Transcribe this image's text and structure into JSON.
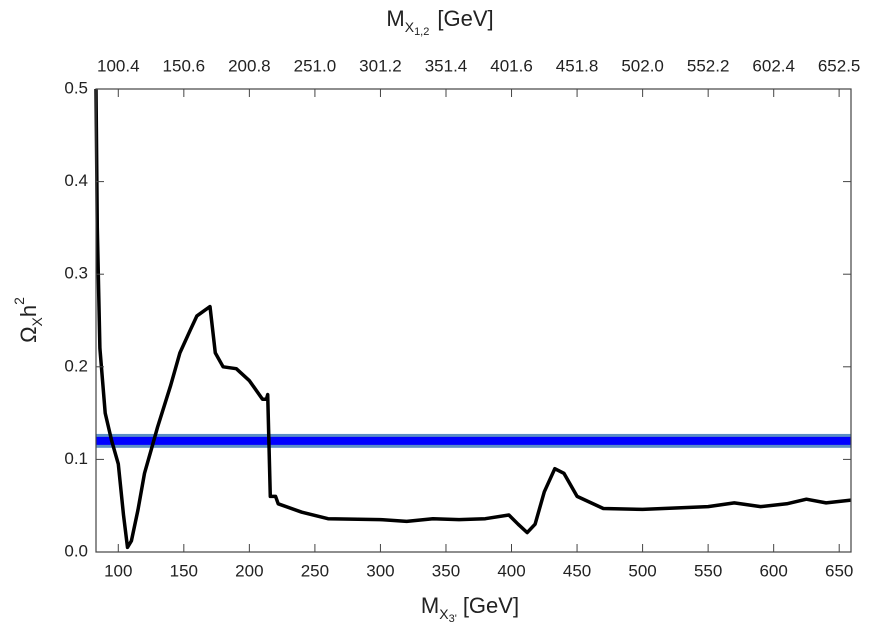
{
  "chart_data": {
    "type": "line",
    "x_label": {
      "main": "M",
      "sub": "X",
      "subsub": "3'",
      "unit": "[GeV]"
    },
    "x2_label": {
      "main": "M",
      "sub": "X",
      "subsub": "1,2",
      "unit": "[GeV]"
    },
    "y_label": {
      "main": "Ω",
      "sub": "X",
      "mid": "h",
      "sup": "2"
    },
    "xlim": [
      83,
      659
    ],
    "xticks": [
      100,
      150,
      200,
      250,
      300,
      350,
      400,
      450,
      500,
      550,
      600,
      650
    ],
    "x2lim": [
      83.33,
      661.6
    ],
    "x2ticks": [
      100.4,
      150.6,
      200.8,
      {
        "value": 251,
        "label": "251.0"
      },
      301.2,
      351.4,
      401.6,
      451.8,
      {
        "value": 502,
        "label": "502.0"
      },
      552.2,
      602.4,
      652.5
    ],
    "ylim": [
      0,
      0.5
    ],
    "yticks": [
      {
        "value": 0,
        "label": "0.0"
      },
      0.1,
      0.2,
      0.3,
      0.4,
      0.5
    ],
    "color": "#000000",
    "x": [
      83,
      84,
      86,
      90,
      95,
      100,
      104,
      107,
      110,
      115,
      120,
      125,
      130,
      140,
      147,
      155,
      160,
      165,
      170,
      174,
      180,
      190,
      200,
      210,
      213,
      214,
      216,
      220,
      222,
      240,
      260,
      300,
      320,
      340,
      360,
      380,
      398,
      405,
      412,
      418,
      425,
      433,
      440,
      450,
      470,
      500,
      550,
      570,
      590,
      610,
      625,
      640,
      659
    ],
    "values": [
      0.5,
      0.35,
      0.22,
      0.15,
      0.12,
      0.095,
      0.04,
      0.005,
      0.012,
      0.045,
      0.085,
      0.11,
      0.135,
      0.18,
      0.215,
      0.24,
      0.255,
      0.26,
      0.265,
      0.215,
      0.2,
      0.198,
      0.185,
      0.165,
      0.165,
      0.17,
      0.06,
      0.06,
      0.052,
      0.043,
      0.036,
      0.035,
      0.033,
      0.036,
      0.035,
      0.036,
      0.04,
      0.03,
      0.021,
      0.03,
      0.065,
      0.09,
      0.085,
      0.06,
      0.047,
      0.046,
      0.049,
      0.053,
      0.049,
      0.052,
      0.057,
      0.053,
      0.056
    ],
    "band": {
      "value": 0.12,
      "lower": 0.1125,
      "upper": 0.1275,
      "color": "#0000ff",
      "edge_color": "#5b8fc7"
    }
  }
}
